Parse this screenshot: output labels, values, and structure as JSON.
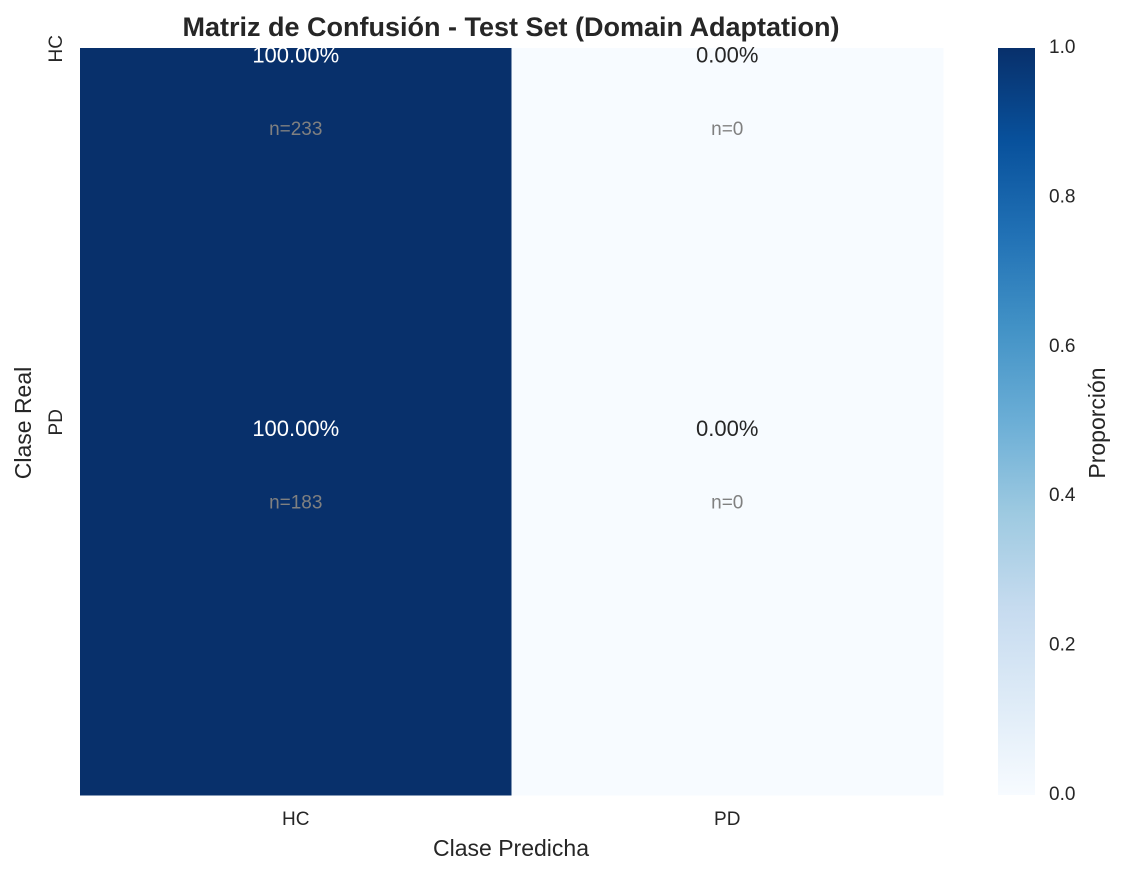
{
  "chart_data": {
    "type": "heatmap",
    "title": "Matriz de Confusión - Test Set (Domain Adaptation)",
    "xlabel": "Clase Predicha",
    "ylabel": "Clase Real",
    "x_categories": [
      "HC",
      "PD"
    ],
    "y_categories": [
      "HC",
      "PD"
    ],
    "values": [
      [
        1.0,
        0.0
      ],
      [
        1.0,
        0.0
      ]
    ],
    "cell_labels": [
      [
        "100.00%",
        "0.00%"
      ],
      [
        "100.00%",
        "0.00%"
      ]
    ],
    "cell_counts": [
      [
        "n=233",
        "n=0"
      ],
      [
        "n=183",
        "n=0"
      ]
    ],
    "colorbar": {
      "label": "Proporción",
      "range": [
        0.0,
        1.0
      ],
      "ticks": [
        "0.0",
        "0.2",
        "0.4",
        "0.6",
        "0.8",
        "1.0"
      ],
      "colormap": "Blues"
    },
    "colors": {
      "low": "#f7fbff",
      "high": "#08306b",
      "text_on_dark": "#ffffff",
      "text_on_light": "#262626",
      "count_text": "#808080"
    }
  }
}
